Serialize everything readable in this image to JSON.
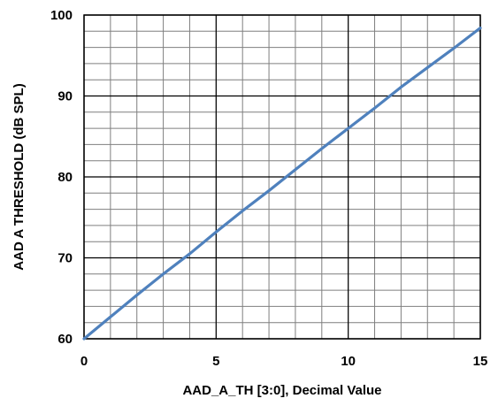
{
  "chart_data": {
    "type": "line",
    "title": "",
    "xlabel": "AAD_A_TH [3:0], Decimal Value",
    "ylabel": "AAD A THRESHOLD (dB SPL)",
    "xlim": [
      0,
      15
    ],
    "ylim": [
      60,
      100
    ],
    "x_ticks": [
      0,
      5,
      10,
      15
    ],
    "y_ticks": [
      60,
      70,
      80,
      90,
      100
    ],
    "minor_grid": {
      "x_step": 1,
      "y_step": 2
    },
    "major_grid": {
      "x_step": 5,
      "y_step": 10
    },
    "legend": "none",
    "series": [
      {
        "color": "#4f81bd",
        "x": [
          0,
          1,
          2,
          3,
          4,
          5,
          6,
          7,
          8,
          9,
          10,
          11,
          12,
          13,
          14,
          15
        ],
        "y": [
          60,
          62.7,
          65.4,
          68.0,
          70.5,
          73.2,
          75.8,
          78.3,
          80.9,
          83.5,
          86.0,
          88.5,
          91.1,
          93.5,
          95.9,
          98.4
        ]
      }
    ]
  }
}
